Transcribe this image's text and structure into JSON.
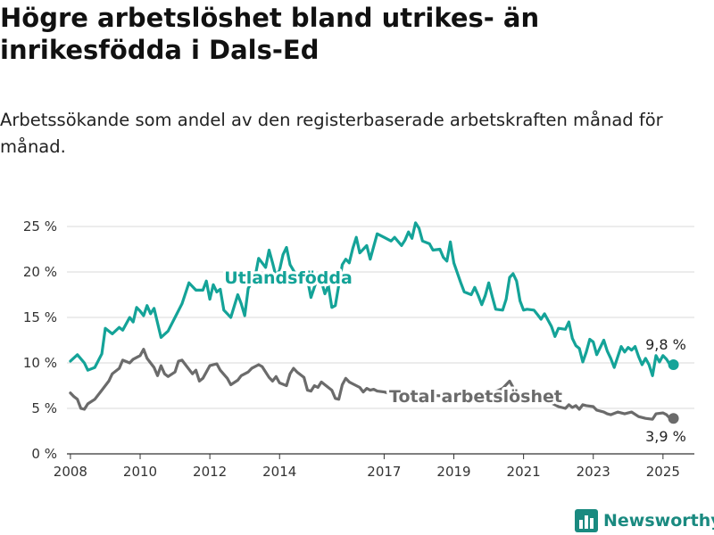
{
  "title": "Högre arbetslöshet bland utrikes- än inrikesfödda i Dals-Ed",
  "subtitle": "Arbetssökande som andel av den registerbaserade arbetskraften månad för månad.",
  "brand": {
    "name": "Newsworthy",
    "icon": "bar-chart-icon",
    "color": "#1a8a80"
  },
  "chart_data": {
    "type": "line",
    "xlabel": "",
    "ylabel": "",
    "ylim": [
      0,
      25
    ],
    "y_ticks": [
      {
        "value": 0,
        "label": "0 %"
      },
      {
        "value": 5,
        "label": "5 %"
      },
      {
        "value": 10,
        "label": "10 %"
      },
      {
        "value": 15,
        "label": "15 %"
      },
      {
        "value": 20,
        "label": "20 %"
      },
      {
        "value": 25,
        "label": "25 %"
      }
    ],
    "xlim": [
      2007.9,
      2025.9
    ],
    "x_ticks": [
      {
        "value": 2008,
        "label": "2008"
      },
      {
        "value": 2010,
        "label": "2010"
      },
      {
        "value": 2012,
        "label": "2012"
      },
      {
        "value": 2014,
        "label": "2014"
      },
      {
        "value": 2017,
        "label": "2017"
      },
      {
        "value": 2019,
        "label": "2019"
      },
      {
        "value": 2021,
        "label": "2021"
      },
      {
        "value": 2023,
        "label": "2023"
      },
      {
        "value": 2025,
        "label": "2025"
      }
    ],
    "grid": "horizontal",
    "series": [
      {
        "name": "Utlandsfödda",
        "color": "#14a398",
        "end_label": "9,8 %",
        "points": [
          [
            2008.0,
            10.2
          ],
          [
            2008.2,
            10.9
          ],
          [
            2008.4,
            10.0
          ],
          [
            2008.5,
            9.2
          ],
          [
            2008.7,
            9.5
          ],
          [
            2008.9,
            11.0
          ],
          [
            2009.0,
            13.8
          ],
          [
            2009.2,
            13.2
          ],
          [
            2009.4,
            13.9
          ],
          [
            2009.5,
            13.6
          ],
          [
            2009.7,
            15.0
          ],
          [
            2009.8,
            14.5
          ],
          [
            2009.9,
            16.1
          ],
          [
            2010.0,
            15.7
          ],
          [
            2010.1,
            15.2
          ],
          [
            2010.2,
            16.3
          ],
          [
            2010.3,
            15.4
          ],
          [
            2010.4,
            16.0
          ],
          [
            2010.6,
            12.8
          ],
          [
            2010.8,
            13.5
          ],
          [
            2011.0,
            15.0
          ],
          [
            2011.2,
            16.5
          ],
          [
            2011.4,
            18.8
          ],
          [
            2011.6,
            18.0
          ],
          [
            2011.8,
            18.0
          ],
          [
            2011.9,
            19.0
          ],
          [
            2012.0,
            17.0
          ],
          [
            2012.1,
            18.6
          ],
          [
            2012.2,
            17.8
          ],
          [
            2012.3,
            18.1
          ],
          [
            2012.4,
            15.8
          ],
          [
            2012.6,
            15.0
          ],
          [
            2012.8,
            17.5
          ],
          [
            2012.9,
            16.5
          ],
          [
            2013.0,
            15.2
          ],
          [
            2013.1,
            18.2
          ],
          [
            2013.3,
            19.5
          ],
          [
            2013.4,
            21.5
          ],
          [
            2013.6,
            20.5
          ],
          [
            2013.7,
            22.4
          ],
          [
            2013.8,
            21.0
          ],
          [
            2013.9,
            19.5
          ],
          [
            2014.0,
            20.2
          ],
          [
            2014.1,
            21.9
          ],
          [
            2014.2,
            22.7
          ],
          [
            2014.3,
            20.8
          ],
          [
            2014.5,
            19.5
          ],
          [
            2014.7,
            20.0
          ],
          [
            2014.8,
            19.2
          ],
          [
            2014.9,
            17.2
          ],
          [
            2015.1,
            19.5
          ],
          [
            2015.2,
            19.0
          ],
          [
            2015.3,
            17.6
          ],
          [
            2015.4,
            18.5
          ],
          [
            2015.5,
            16.1
          ],
          [
            2015.6,
            16.3
          ],
          [
            2015.8,
            20.8
          ],
          [
            2015.9,
            21.4
          ],
          [
            2016.0,
            21.0
          ],
          [
            2016.1,
            22.6
          ],
          [
            2016.2,
            23.8
          ],
          [
            2016.3,
            22.1
          ],
          [
            2016.5,
            22.9
          ],
          [
            2016.6,
            21.4
          ],
          [
            2016.8,
            24.2
          ],
          [
            2017.0,
            23.8
          ],
          [
            2017.2,
            23.4
          ],
          [
            2017.3,
            23.8
          ],
          [
            2017.5,
            22.9
          ],
          [
            2017.6,
            23.5
          ],
          [
            2017.7,
            24.4
          ],
          [
            2017.8,
            23.7
          ],
          [
            2017.9,
            25.4
          ],
          [
            2018.0,
            24.8
          ],
          [
            2018.1,
            23.4
          ],
          [
            2018.3,
            23.1
          ],
          [
            2018.4,
            22.4
          ],
          [
            2018.6,
            22.5
          ],
          [
            2018.7,
            21.6
          ],
          [
            2018.8,
            21.2
          ],
          [
            2018.9,
            23.3
          ],
          [
            2019.0,
            21.0
          ],
          [
            2019.1,
            19.9
          ],
          [
            2019.2,
            18.8
          ],
          [
            2019.3,
            17.8
          ],
          [
            2019.5,
            17.5
          ],
          [
            2019.6,
            18.3
          ],
          [
            2019.7,
            17.4
          ],
          [
            2019.8,
            16.4
          ],
          [
            2019.9,
            17.4
          ],
          [
            2020.0,
            18.8
          ],
          [
            2020.1,
            17.3
          ],
          [
            2020.2,
            15.9
          ],
          [
            2020.4,
            15.8
          ],
          [
            2020.5,
            17.0
          ],
          [
            2020.6,
            19.4
          ],
          [
            2020.7,
            19.8
          ],
          [
            2020.8,
            19.0
          ],
          [
            2020.9,
            16.8
          ],
          [
            2021.0,
            15.8
          ],
          [
            2021.1,
            15.9
          ],
          [
            2021.3,
            15.8
          ],
          [
            2021.4,
            15.3
          ],
          [
            2021.5,
            14.8
          ],
          [
            2021.6,
            15.4
          ],
          [
            2021.8,
            14.0
          ],
          [
            2021.9,
            12.9
          ],
          [
            2022.0,
            13.8
          ],
          [
            2022.2,
            13.7
          ],
          [
            2022.3,
            14.5
          ],
          [
            2022.4,
            12.7
          ],
          [
            2022.5,
            11.9
          ],
          [
            2022.6,
            11.6
          ],
          [
            2022.7,
            10.1
          ],
          [
            2022.8,
            11.2
          ],
          [
            2022.9,
            12.6
          ],
          [
            2023.0,
            12.3
          ],
          [
            2023.1,
            10.9
          ],
          [
            2023.3,
            12.5
          ],
          [
            2023.4,
            11.3
          ],
          [
            2023.5,
            10.5
          ],
          [
            2023.6,
            9.5
          ],
          [
            2023.8,
            11.8
          ],
          [
            2023.9,
            11.2
          ],
          [
            2024.0,
            11.7
          ],
          [
            2024.1,
            11.4
          ],
          [
            2024.2,
            11.8
          ],
          [
            2024.3,
            10.7
          ],
          [
            2024.4,
            9.8
          ],
          [
            2024.5,
            10.5
          ],
          [
            2024.6,
            9.8
          ],
          [
            2024.7,
            8.6
          ],
          [
            2024.8,
            10.8
          ],
          [
            2024.9,
            10.1
          ],
          [
            2025.0,
            10.8
          ],
          [
            2025.1,
            10.4
          ],
          [
            2025.2,
            9.8
          ],
          [
            2025.3,
            9.8
          ]
        ]
      },
      {
        "name": "Total arbetslöshet",
        "color": "#6b6b6b",
        "end_label": "3,9 %",
        "points": [
          [
            2008.0,
            6.7
          ],
          [
            2008.1,
            6.3
          ],
          [
            2008.2,
            6.0
          ],
          [
            2008.3,
            5.0
          ],
          [
            2008.4,
            4.9
          ],
          [
            2008.5,
            5.5
          ],
          [
            2008.7,
            6.0
          ],
          [
            2008.9,
            7.0
          ],
          [
            2009.1,
            8.0
          ],
          [
            2009.2,
            8.8
          ],
          [
            2009.4,
            9.4
          ],
          [
            2009.5,
            10.3
          ],
          [
            2009.7,
            10.0
          ],
          [
            2009.8,
            10.4
          ],
          [
            2010.0,
            10.8
          ],
          [
            2010.1,
            11.5
          ],
          [
            2010.2,
            10.5
          ],
          [
            2010.4,
            9.5
          ],
          [
            2010.5,
            8.6
          ],
          [
            2010.6,
            9.7
          ],
          [
            2010.7,
            8.8
          ],
          [
            2010.8,
            8.5
          ],
          [
            2011.0,
            9.0
          ],
          [
            2011.1,
            10.2
          ],
          [
            2011.2,
            10.3
          ],
          [
            2011.3,
            9.8
          ],
          [
            2011.5,
            8.8
          ],
          [
            2011.6,
            9.2
          ],
          [
            2011.7,
            8.0
          ],
          [
            2011.8,
            8.3
          ],
          [
            2012.0,
            9.7
          ],
          [
            2012.2,
            9.9
          ],
          [
            2012.3,
            9.2
          ],
          [
            2012.5,
            8.3
          ],
          [
            2012.6,
            7.6
          ],
          [
            2012.8,
            8.1
          ],
          [
            2012.9,
            8.6
          ],
          [
            2013.1,
            9.0
          ],
          [
            2013.2,
            9.4
          ],
          [
            2013.4,
            9.8
          ],
          [
            2013.5,
            9.6
          ],
          [
            2013.7,
            8.4
          ],
          [
            2013.8,
            8.0
          ],
          [
            2013.9,
            8.5
          ],
          [
            2014.0,
            7.8
          ],
          [
            2014.2,
            7.5
          ],
          [
            2014.3,
            8.8
          ],
          [
            2014.4,
            9.4
          ],
          [
            2014.5,
            9.0
          ],
          [
            2014.7,
            8.4
          ],
          [
            2014.8,
            7.0
          ],
          [
            2014.9,
            6.9
          ],
          [
            2015.0,
            7.5
          ],
          [
            2015.1,
            7.3
          ],
          [
            2015.2,
            7.9
          ],
          [
            2015.3,
            7.6
          ],
          [
            2015.5,
            7.0
          ],
          [
            2015.6,
            6.1
          ],
          [
            2015.7,
            6.0
          ],
          [
            2015.8,
            7.6
          ],
          [
            2015.9,
            8.3
          ],
          [
            2016.0,
            7.9
          ],
          [
            2016.1,
            7.7
          ],
          [
            2016.3,
            7.3
          ],
          [
            2016.4,
            6.8
          ],
          [
            2016.5,
            7.2
          ],
          [
            2016.6,
            7.0
          ],
          [
            2016.7,
            7.1
          ],
          [
            2016.8,
            6.9
          ],
          [
            2017.0,
            6.8
          ],
          [
            2017.2,
            6.6
          ],
          [
            2017.5,
            6.5
          ],
          [
            2018.0,
            6.4
          ],
          [
            2018.5,
            6.4
          ],
          [
            2019.0,
            6.3
          ],
          [
            2019.5,
            6.4
          ],
          [
            2020.0,
            6.5
          ],
          [
            2020.4,
            7.2
          ],
          [
            2020.5,
            7.6
          ],
          [
            2020.6,
            8.0
          ],
          [
            2020.8,
            6.6
          ],
          [
            2021.0,
            6.1
          ],
          [
            2021.5,
            5.9
          ],
          [
            2021.8,
            5.6
          ],
          [
            2021.9,
            5.4
          ],
          [
            2022.0,
            5.2
          ],
          [
            2022.2,
            5.0
          ],
          [
            2022.3,
            5.4
          ],
          [
            2022.4,
            5.1
          ],
          [
            2022.5,
            5.3
          ],
          [
            2022.6,
            4.9
          ],
          [
            2022.7,
            5.4
          ],
          [
            2022.8,
            5.3
          ],
          [
            2023.0,
            5.2
          ],
          [
            2023.1,
            4.8
          ],
          [
            2023.3,
            4.6
          ],
          [
            2023.4,
            4.4
          ],
          [
            2023.5,
            4.3
          ],
          [
            2023.7,
            4.6
          ],
          [
            2023.9,
            4.4
          ],
          [
            2024.1,
            4.6
          ],
          [
            2024.3,
            4.1
          ],
          [
            2024.5,
            3.9
          ],
          [
            2024.7,
            3.8
          ],
          [
            2024.8,
            4.4
          ],
          [
            2025.0,
            4.5
          ],
          [
            2025.1,
            4.3
          ],
          [
            2025.2,
            3.9
          ],
          [
            2025.3,
            3.9
          ]
        ]
      }
    ]
  }
}
